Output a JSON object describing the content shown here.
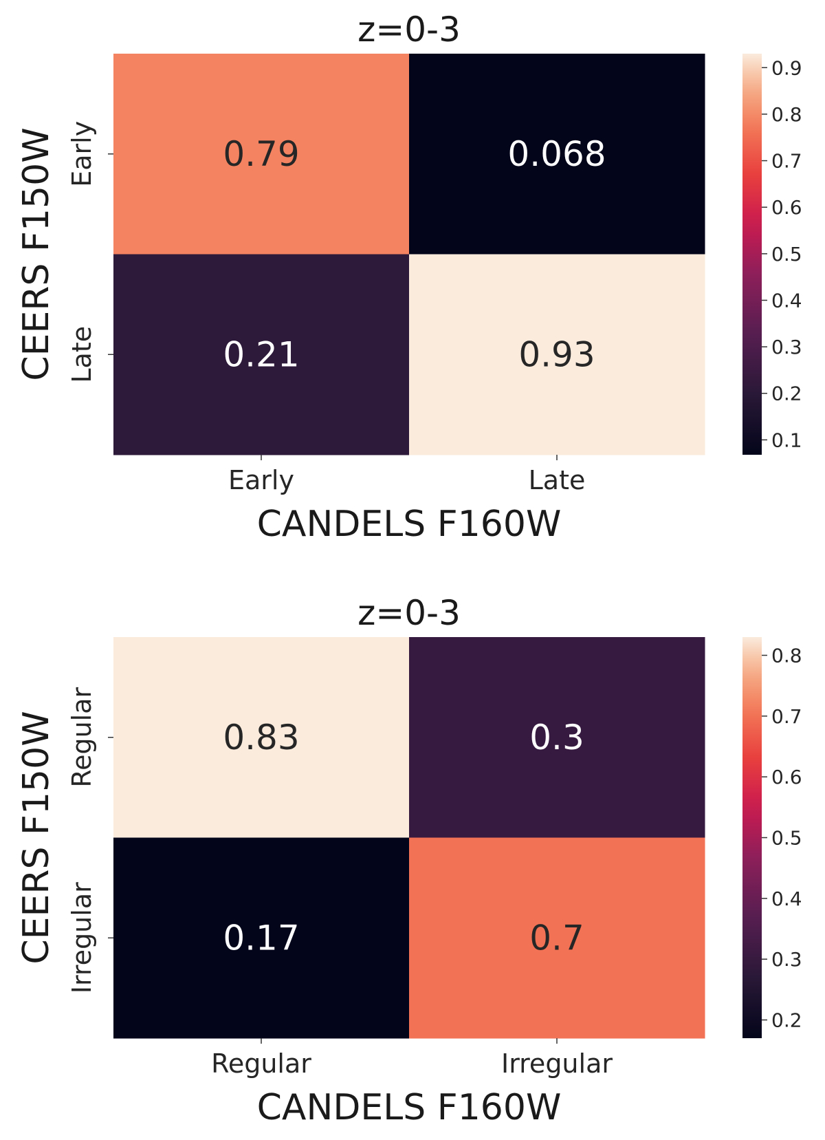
{
  "chart_data": [
    {
      "type": "heatmap",
      "title": "z=0-3",
      "xlabel": "CANDELS F160W",
      "ylabel": "CEERS F150W",
      "x_categories": [
        "Early",
        "Late"
      ],
      "y_categories": [
        "Early",
        "Late"
      ],
      "values": [
        [
          0.79,
          0.068
        ],
        [
          0.21,
          0.93
        ]
      ],
      "cell_labels": [
        [
          "0.79",
          "0.068"
        ],
        [
          "0.21",
          "0.93"
        ]
      ],
      "colormap": "rocket",
      "colorbar": {
        "vmin": 0.068,
        "vmax": 0.93,
        "ticks": [
          0.1,
          0.2,
          0.3,
          0.4,
          0.5,
          0.6,
          0.7,
          0.8,
          0.9
        ],
        "tick_labels": [
          "0.1",
          "0.2",
          "0.3",
          "0.4",
          "0.5",
          "0.6",
          "0.7",
          "0.8",
          "0.9"
        ]
      }
    },
    {
      "type": "heatmap",
      "title": "z=0-3",
      "xlabel": "CANDELS F160W",
      "ylabel": "CEERS F150W",
      "x_categories": [
        "Regular",
        "Irregular"
      ],
      "y_categories": [
        "Regular",
        "Irregular"
      ],
      "values": [
        [
          0.83,
          0.3
        ],
        [
          0.17,
          0.7
        ]
      ],
      "cell_labels": [
        [
          "0.83",
          "0.3"
        ],
        [
          "0.17",
          "0.7"
        ]
      ],
      "colormap": "rocket",
      "colorbar": {
        "vmin": 0.17,
        "vmax": 0.83,
        "ticks": [
          0.2,
          0.3,
          0.4,
          0.5,
          0.6,
          0.7,
          0.8
        ],
        "tick_labels": [
          "0.2",
          "0.3",
          "0.4",
          "0.5",
          "0.6",
          "0.7",
          "0.8"
        ]
      }
    }
  ]
}
